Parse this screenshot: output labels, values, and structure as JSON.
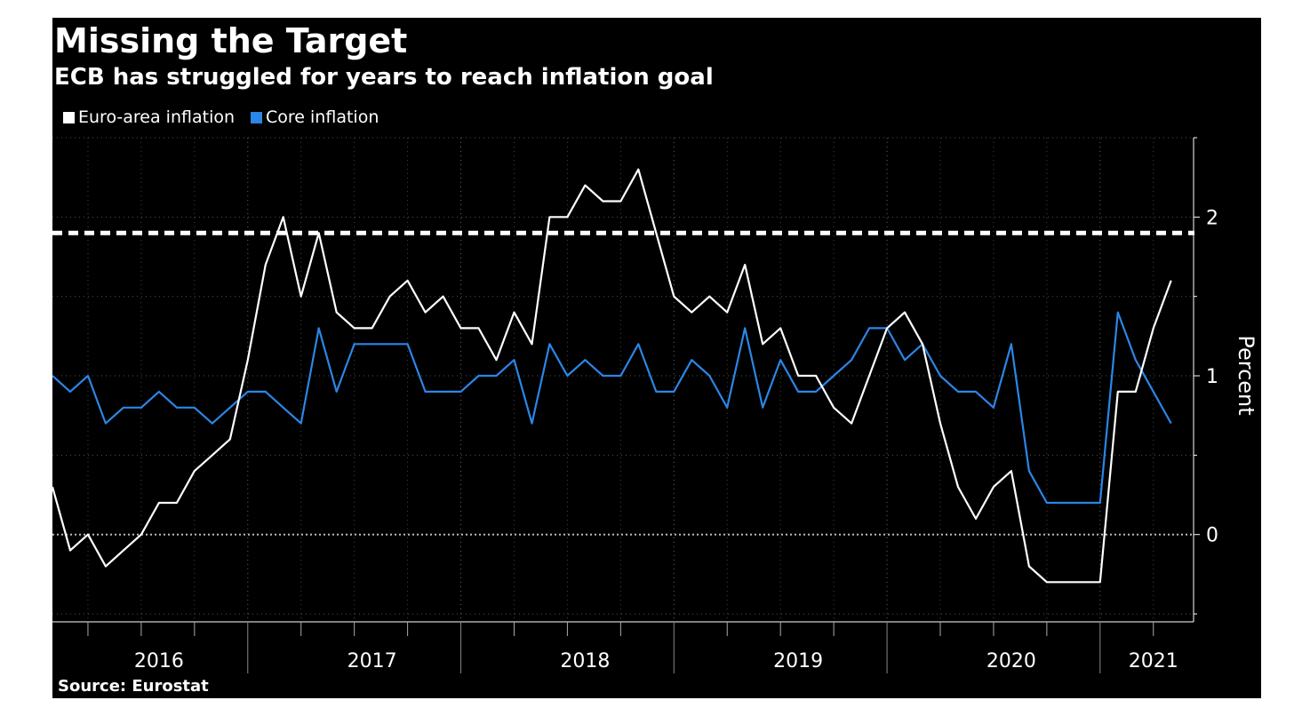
{
  "title": "Missing the Target",
  "subtitle": "ECB has struggled for years to reach inflation goal",
  "source": "Source: Eurostat",
  "colors": {
    "background": "#000000",
    "euro_area": "#ffffff",
    "core": "#2b86e6",
    "target": "#ffffff",
    "grid": "#666666"
  },
  "chart_data": {
    "type": "line",
    "title": "Missing the Target",
    "subtitle": "ECB has struggled for years to reach inflation goal",
    "xlabel": "",
    "ylabel": "Percent",
    "y_axis_position": "right",
    "ylim": [
      -0.55,
      2.5
    ],
    "yticks": [
      0,
      1,
      2
    ],
    "ytick_labels": [
      "0",
      "1",
      "2"
    ],
    "x_year_labels": [
      "2016",
      "2017",
      "2018",
      "2019",
      "2020",
      "2021"
    ],
    "target_line": 1.9,
    "legend_placement": "top-left",
    "grid": true,
    "x": [
      "2016-01",
      "2016-02",
      "2016-03",
      "2016-04",
      "2016-05",
      "2016-06",
      "2016-07",
      "2016-08",
      "2016-09",
      "2016-10",
      "2016-11",
      "2016-12",
      "2017-01",
      "2017-02",
      "2017-03",
      "2017-04",
      "2017-05",
      "2017-06",
      "2017-07",
      "2017-08",
      "2017-09",
      "2017-10",
      "2017-11",
      "2017-12",
      "2018-01",
      "2018-02",
      "2018-03",
      "2018-04",
      "2018-05",
      "2018-06",
      "2018-07",
      "2018-08",
      "2018-09",
      "2018-10",
      "2018-11",
      "2018-12",
      "2019-01",
      "2019-02",
      "2019-03",
      "2019-04",
      "2019-05",
      "2019-06",
      "2019-07",
      "2019-08",
      "2019-09",
      "2019-10",
      "2019-11",
      "2019-12",
      "2020-01",
      "2020-02",
      "2020-03",
      "2020-04",
      "2020-05",
      "2020-06",
      "2020-07",
      "2020-08",
      "2020-09",
      "2020-10",
      "2020-11",
      "2020-12",
      "2021-01",
      "2021-02",
      "2021-03",
      "2021-04"
    ],
    "series": [
      {
        "name": "Euro-area inflation",
        "color": "#ffffff",
        "values": [
          0.3,
          -0.1,
          0.0,
          -0.2,
          -0.1,
          0.0,
          0.2,
          0.2,
          0.4,
          0.5,
          0.6,
          1.1,
          1.7,
          2.0,
          1.5,
          1.9,
          1.4,
          1.3,
          1.3,
          1.5,
          1.6,
          1.4,
          1.5,
          1.3,
          1.3,
          1.1,
          1.4,
          1.2,
          2.0,
          2.0,
          2.2,
          2.1,
          2.1,
          2.3,
          1.9,
          1.5,
          1.4,
          1.5,
          1.4,
          1.7,
          1.2,
          1.3,
          1.0,
          1.0,
          0.8,
          0.7,
          1.0,
          1.3,
          1.4,
          1.2,
          0.7,
          0.3,
          0.1,
          0.3,
          0.4,
          -0.2,
          -0.3,
          -0.3,
          -0.3,
          -0.3,
          0.9,
          0.9,
          1.3,
          1.6
        ]
      },
      {
        "name": "Core inflation",
        "color": "#2b86e6",
        "values": [
          1.0,
          0.9,
          1.0,
          0.7,
          0.8,
          0.8,
          0.9,
          0.8,
          0.8,
          0.7,
          0.8,
          0.9,
          0.9,
          0.8,
          0.7,
          1.3,
          0.9,
          1.2,
          1.2,
          1.2,
          1.2,
          0.9,
          0.9,
          0.9,
          1.0,
          1.0,
          1.1,
          0.7,
          1.2,
          1.0,
          1.1,
          1.0,
          1.0,
          1.2,
          0.9,
          0.9,
          1.1,
          1.0,
          0.8,
          1.3,
          0.8,
          1.1,
          0.9,
          0.9,
          1.0,
          1.1,
          1.3,
          1.3,
          1.1,
          1.2,
          1.0,
          0.9,
          0.9,
          0.8,
          1.2,
          0.4,
          0.2,
          0.2,
          0.2,
          0.2,
          1.4,
          1.1,
          0.9,
          0.7
        ]
      }
    ]
  }
}
